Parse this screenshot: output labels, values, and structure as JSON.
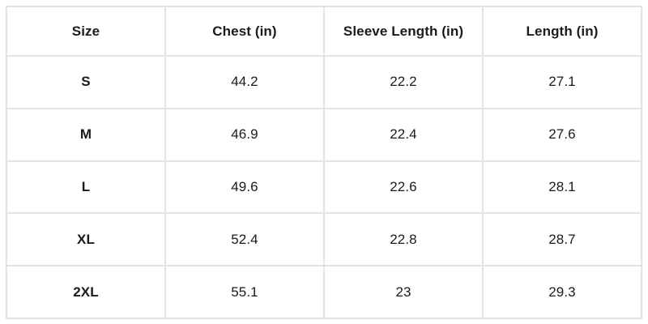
{
  "chart_data": {
    "type": "table",
    "columns": [
      "Size",
      "Chest (in)",
      "Sleeve Length (in)",
      "Length (in)"
    ],
    "rows": [
      [
        "S",
        44.2,
        22.2,
        27.1
      ],
      [
        "M",
        46.9,
        22.4,
        27.6
      ],
      [
        "L",
        49.6,
        22.6,
        28.1
      ],
      [
        "XL",
        52.4,
        22.8,
        28.7
      ],
      [
        "2XL",
        55.1,
        23,
        29.3
      ]
    ],
    "layout": {
      "grid": "on",
      "header_row_bold": true,
      "first_column_bold": true,
      "cell_alignment": "center"
    }
  },
  "colors": {
    "background": "#ffffff",
    "border": "#e3e5e5",
    "text": "#191b1d"
  }
}
